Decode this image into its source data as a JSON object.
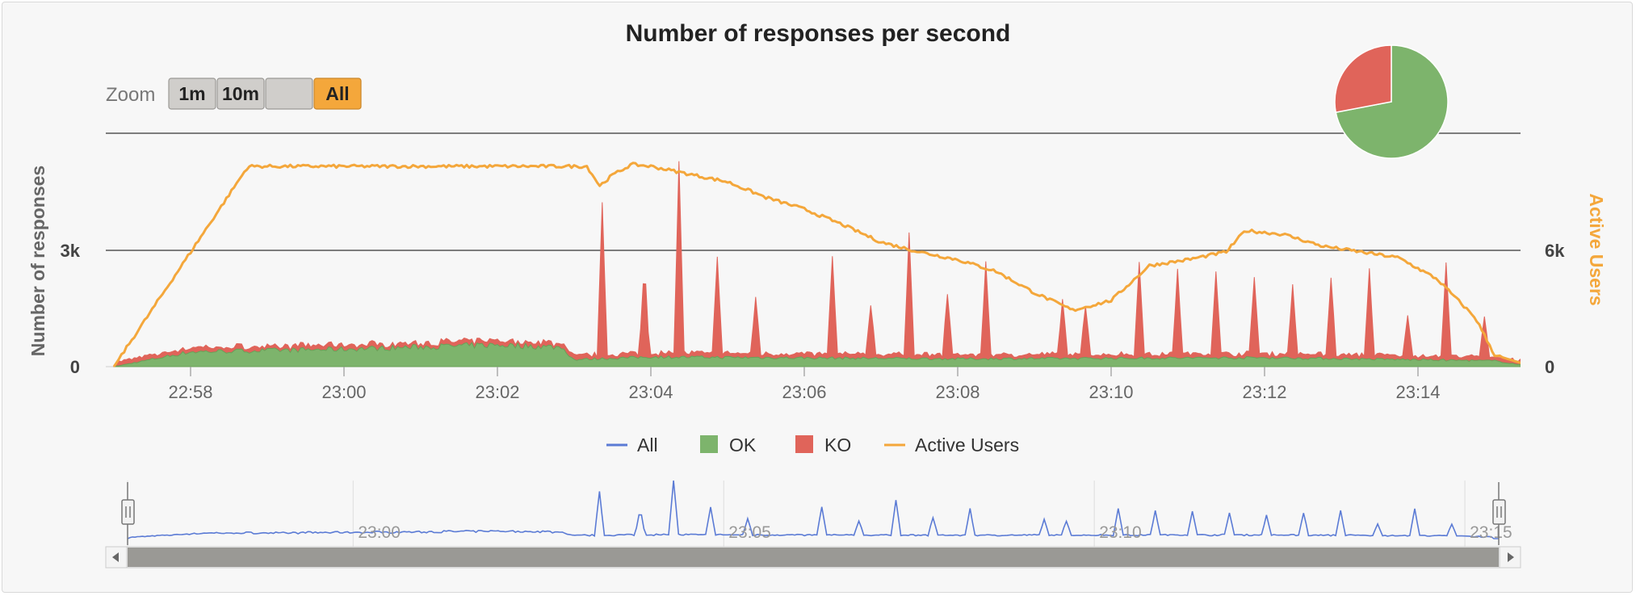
{
  "colors": {
    "all": "#5b7bd5",
    "ok": "#7db46c",
    "ko": "#e0645a",
    "active_users": "#f4a73b",
    "grid": "#555555"
  },
  "chart_data": {
    "type": "area",
    "title": "Number of responses per second",
    "ylabel": "Number of responses",
    "y2label": "Active Users",
    "y_ticks": [
      "0",
      "3k"
    ],
    "y2_ticks": [
      "0",
      "6k"
    ],
    "ylim": [
      0,
      6000
    ],
    "y2lim": [
      0,
      12000
    ],
    "xlim": [
      "22:57",
      "23:15:30"
    ],
    "x_ticks": [
      "22:58",
      "23:00",
      "23:02",
      "23:04",
      "23:06",
      "23:08",
      "23:10",
      "23:12",
      "23:14"
    ],
    "legend": [
      "All",
      "OK",
      "KO",
      "Active Users"
    ],
    "legend_position": "bottom",
    "grid": true,
    "active_users": {
      "x": [
        "22:57",
        "22:58:45",
        "23:03:10",
        "23:03:20",
        "23:03:30",
        "23:03:45",
        "23:04:00",
        "23:04:30",
        "23:05:00",
        "23:05:30",
        "23:06:00",
        "23:06:30",
        "23:07:00",
        "23:07:30",
        "23:08:00",
        "23:08:30",
        "23:09:00",
        "23:09:30",
        "23:10:00",
        "23:10:30",
        "23:11:00",
        "23:11:30",
        "23:11:45",
        "23:12:15",
        "23:12:45",
        "23:13:15",
        "23:13:45",
        "23:14:15",
        "23:14:45",
        "23:15:00",
        "23:15:30"
      ],
      "values": [
        0,
        10300,
        10300,
        9300,
        9850,
        10400,
        10300,
        9900,
        9500,
        8700,
        8100,
        7300,
        6400,
        5900,
        5500,
        4900,
        3800,
        2900,
        3400,
        5200,
        5500,
        5900,
        7000,
        6800,
        6200,
        5900,
        5600,
        4500,
        2500,
        600,
        0
      ]
    },
    "ok_responses": {
      "x": [
        "22:57",
        "22:58",
        "23:00",
        "23:02",
        "23:02:50",
        "23:03:00",
        "23:04",
        "23:08",
        "23:12",
        "23:15",
        "23:15:30"
      ],
      "values": [
        0,
        380,
        450,
        560,
        500,
        180,
        250,
        200,
        230,
        150,
        0
      ]
    },
    "ko_spikes": {
      "x": [
        "23:03:22",
        "23:03:55",
        "23:04:22",
        "23:04:52",
        "23:05:22",
        "23:06:22",
        "23:06:52",
        "23:07:22",
        "23:07:52",
        "23:08:22",
        "23:09:22",
        "23:09:40",
        "23:10:22",
        "23:10:52",
        "23:11:22",
        "23:11:52",
        "23:12:22",
        "23:12:52",
        "23:13:22",
        "23:13:52",
        "23:14:22",
        "23:14:52"
      ],
      "values": [
        3850,
        2380,
        4930,
        2500,
        1440,
        2500,
        1300,
        3150,
        1600,
        2400,
        1400,
        1250,
        2400,
        2200,
        2150,
        2000,
        1800,
        2000,
        2200,
        1000,
        2400,
        1000
      ]
    },
    "navigator": {
      "x_ticks": [
        "23:00",
        "23:05",
        "23:10",
        "23:15"
      ],
      "series": "All"
    },
    "pie": {
      "slices": [
        {
          "name": "OK",
          "value": 72
        },
        {
          "name": "KO",
          "value": 28
        }
      ]
    }
  },
  "zoom": {
    "label": "Zoom",
    "buttons": [
      "1m",
      "10m",
      "",
      "All"
    ],
    "active": "All"
  }
}
